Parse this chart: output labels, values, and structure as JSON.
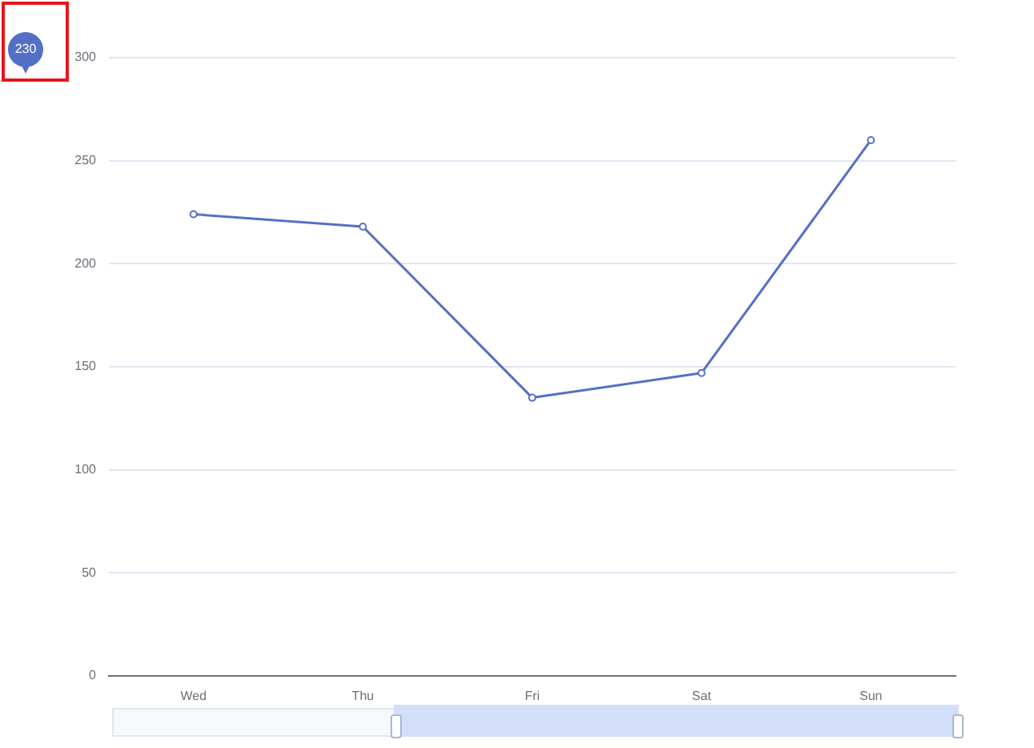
{
  "chart_data": {
    "type": "line",
    "categories": [
      "Wed",
      "Thu",
      "Fri",
      "Sat",
      "Sun"
    ],
    "series": [
      {
        "color": "#5470c6",
        "values": [
          224,
          218,
          135,
          147,
          260
        ]
      }
    ],
    "ylim": [
      0,
      300
    ],
    "yticks": [
      0,
      50,
      100,
      150,
      200,
      250,
      300
    ],
    "grid": "y",
    "legend": false,
    "marker": "circle",
    "line_style": "solid",
    "annotations": [
      "230"
    ]
  }
}
